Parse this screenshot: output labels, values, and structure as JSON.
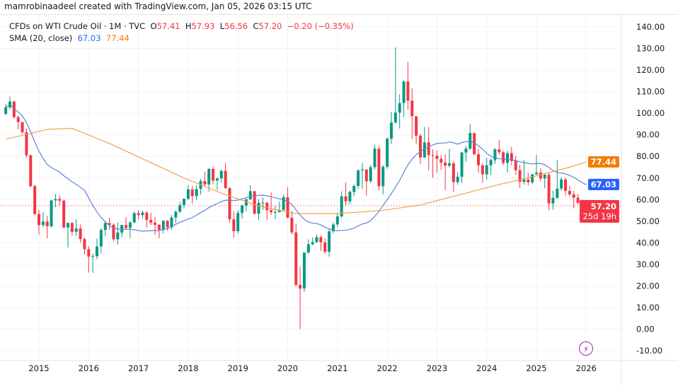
{
  "attribution": "mamrobinaadeel created with TradingView.com, Jan 05, 2026 03:15 UTC",
  "legend": {
    "symbol": "CFDs on WTI Crude Oil · 1M · TVC",
    "open_label": "O",
    "open": "57.41",
    "high_label": "H",
    "high": "57.93",
    "low_label": "L",
    "low": "56.56",
    "close_label": "C",
    "close": "57.20",
    "change": "−0.20 (−0.35%)",
    "sma_label": "SMA (20, close)",
    "sma_value": "67.03",
    "sma_smooth_value": "77.44"
  },
  "price_labels": {
    "sma_smooth": "77.44",
    "sma": "67.03",
    "last": "57.20",
    "countdown": "25d 19h"
  },
  "icons": {
    "bottom": "lightning-icon"
  },
  "colors": {
    "up": "#089981",
    "down": "#f23645",
    "sma": "#2962ff",
    "sma_line": "#5b84d9",
    "sma_smooth": "#f57c00",
    "sma_smooth_line": "#f5a04a"
  },
  "chart_data": {
    "type": "candlestick",
    "interval": "1M",
    "start_month": "2014-05",
    "ohlc": [
      [
        99.7,
        104.2,
        99.0,
        102.7
      ],
      [
        102.7,
        107.7,
        101.7,
        105.4
      ],
      [
        105.4,
        105.8,
        97.4,
        98.2
      ],
      [
        98.2,
        98.9,
        92.5,
        95.9
      ],
      [
        95.9,
        95.9,
        90.4,
        91.2
      ],
      [
        91.2,
        92.9,
        79.4,
        80.5
      ],
      [
        80.5,
        80.9,
        65.7,
        66.2
      ],
      [
        66.2,
        67.0,
        52.7,
        53.3
      ],
      [
        53.3,
        55.2,
        43.6,
        48.2
      ],
      [
        48.2,
        54.2,
        47.3,
        49.8
      ],
      [
        49.8,
        52.5,
        42.0,
        47.6
      ],
      [
        47.6,
        59.9,
        47.1,
        59.6
      ],
      [
        59.6,
        62.6,
        56.5,
        60.3
      ],
      [
        60.3,
        61.9,
        57.2,
        59.5
      ],
      [
        59.5,
        59.9,
        46.7,
        47.1
      ],
      [
        47.1,
        49.3,
        37.8,
        49.2
      ],
      [
        49.2,
        49.4,
        43.2,
        45.1
      ],
      [
        45.1,
        50.9,
        43.1,
        46.6
      ],
      [
        46.6,
        48.4,
        40.0,
        41.7
      ],
      [
        41.7,
        42.6,
        34.5,
        37.0
      ],
      [
        37.0,
        38.4,
        26.2,
        33.6
      ],
      [
        33.6,
        34.8,
        26.1,
        33.8
      ],
      [
        33.8,
        41.9,
        32.4,
        38.3
      ],
      [
        38.3,
        46.8,
        35.2,
        45.9
      ],
      [
        45.9,
        50.2,
        43.0,
        49.1
      ],
      [
        49.1,
        51.7,
        46.0,
        48.3
      ],
      [
        48.3,
        49.0,
        40.6,
        41.6
      ],
      [
        41.6,
        49.4,
        39.2,
        44.7
      ],
      [
        44.7,
        48.3,
        42.5,
        48.2
      ],
      [
        48.2,
        51.9,
        46.0,
        46.9
      ],
      [
        46.9,
        49.9,
        42.2,
        49.4
      ],
      [
        49.4,
        54.5,
        49.0,
        53.7
      ],
      [
        53.7,
        55.2,
        50.7,
        52.8
      ],
      [
        52.8,
        54.9,
        51.2,
        54.0
      ],
      [
        54.0,
        54.6,
        47.1,
        50.6
      ],
      [
        50.6,
        53.8,
        48.2,
        49.3
      ],
      [
        49.3,
        52.0,
        43.8,
        48.3
      ],
      [
        48.3,
        48.6,
        42.1,
        46.0
      ],
      [
        46.0,
        50.4,
        44.4,
        50.2
      ],
      [
        50.2,
        50.4,
        45.6,
        47.2
      ],
      [
        47.2,
        52.9,
        46.0,
        51.7
      ],
      [
        51.7,
        54.9,
        49.1,
        54.4
      ],
      [
        54.4,
        59.0,
        53.8,
        57.4
      ],
      [
        57.4,
        60.5,
        55.8,
        60.4
      ],
      [
        60.4,
        66.7,
        59.8,
        64.7
      ],
      [
        64.7,
        66.4,
        58.1,
        61.6
      ],
      [
        61.6,
        66.6,
        59.9,
        64.9
      ],
      [
        64.9,
        69.6,
        62.3,
        68.6
      ],
      [
        68.6,
        72.9,
        66.3,
        67.0
      ],
      [
        67.0,
        74.5,
        63.6,
        74.2
      ],
      [
        74.2,
        75.3,
        67.0,
        68.8
      ],
      [
        68.8,
        70.4,
        64.4,
        69.8
      ],
      [
        69.8,
        73.9,
        67.6,
        73.3
      ],
      [
        73.3,
        76.9,
        64.9,
        65.3
      ],
      [
        65.3,
        65.6,
        49.4,
        50.9
      ],
      [
        50.9,
        54.6,
        42.4,
        45.4
      ],
      [
        45.4,
        55.0,
        44.3,
        53.8
      ],
      [
        53.8,
        57.8,
        51.2,
        57.2
      ],
      [
        57.2,
        60.4,
        54.5,
        60.1
      ],
      [
        60.1,
        66.6,
        59.9,
        63.9
      ],
      [
        63.9,
        63.9,
        53.0,
        53.5
      ],
      [
        53.5,
        60.2,
        50.6,
        58.5
      ],
      [
        58.5,
        60.9,
        55.2,
        58.6
      ],
      [
        58.6,
        58.7,
        50.5,
        55.1
      ],
      [
        55.1,
        63.4,
        52.9,
        54.1
      ],
      [
        54.1,
        57.2,
        50.9,
        54.2
      ],
      [
        54.2,
        59.0,
        54.0,
        55.2
      ],
      [
        55.2,
        62.4,
        55.0,
        61.1
      ],
      [
        61.1,
        65.7,
        51.4,
        51.6
      ],
      [
        51.6,
        54.7,
        43.9,
        44.8
      ],
      [
        44.8,
        48.7,
        19.9,
        20.5
      ],
      [
        20.5,
        29.1,
        0.0,
        18.8
      ],
      [
        18.8,
        35.6,
        17.3,
        35.5
      ],
      [
        35.5,
        41.6,
        34.7,
        39.3
      ],
      [
        39.3,
        42.5,
        38.7,
        40.3
      ],
      [
        40.3,
        43.8,
        40.0,
        42.6
      ],
      [
        42.6,
        43.4,
        36.2,
        40.2
      ],
      [
        40.2,
        41.9,
        34.9,
        35.8
      ],
      [
        35.8,
        46.3,
        33.6,
        45.3
      ],
      [
        45.3,
        49.4,
        44.3,
        48.5
      ],
      [
        48.5,
        53.9,
        47.2,
        52.2
      ],
      [
        52.2,
        63.8,
        51.6,
        61.5
      ],
      [
        61.5,
        67.9,
        57.3,
        59.2
      ],
      [
        59.2,
        64.1,
        57.8,
        63.6
      ],
      [
        63.6,
        67.0,
        61.6,
        66.3
      ],
      [
        66.3,
        74.0,
        65.0,
        73.5
      ],
      [
        73.5,
        76.9,
        65.0,
        73.9
      ],
      [
        73.9,
        73.9,
        61.8,
        68.5
      ],
      [
        68.5,
        76.0,
        67.6,
        75.0
      ],
      [
        75.0,
        85.4,
        74.0,
        83.6
      ],
      [
        83.6,
        84.9,
        64.4,
        66.2
      ],
      [
        66.2,
        76.0,
        62.4,
        75.2
      ],
      [
        75.2,
        88.8,
        74.3,
        88.2
      ],
      [
        88.2,
        100.5,
        85.7,
        95.7
      ],
      [
        95.7,
        130.5,
        95.1,
        100.3
      ],
      [
        100.3,
        108.8,
        92.9,
        104.7
      ],
      [
        104.7,
        115.3,
        98.2,
        114.7
      ],
      [
        114.7,
        123.7,
        101.5,
        105.8
      ],
      [
        105.8,
        111.5,
        88.0,
        98.6
      ],
      [
        98.6,
        98.6,
        85.8,
        89.6
      ],
      [
        89.6,
        90.4,
        76.3,
        79.5
      ],
      [
        79.5,
        93.6,
        79.3,
        86.5
      ],
      [
        86.5,
        93.7,
        73.6,
        80.6
      ],
      [
        80.6,
        83.3,
        70.1,
        80.3
      ],
      [
        80.3,
        82.7,
        72.5,
        78.9
      ],
      [
        78.9,
        80.6,
        73.8,
        77.1
      ],
      [
        77.1,
        81.0,
        64.4,
        75.7
      ],
      [
        75.7,
        83.5,
        74.9,
        76.8
      ],
      [
        76.8,
        77.7,
        63.6,
        68.1
      ],
      [
        68.1,
        72.7,
        66.8,
        70.6
      ],
      [
        70.6,
        82.0,
        67.7,
        81.8
      ],
      [
        81.8,
        84.9,
        77.6,
        83.6
      ],
      [
        83.6,
        95.0,
        83.0,
        90.8
      ],
      [
        90.8,
        90.9,
        80.5,
        81.0
      ],
      [
        81.0,
        83.6,
        72.4,
        75.9
      ],
      [
        75.9,
        76.8,
        67.7,
        71.7
      ],
      [
        71.7,
        79.3,
        69.3,
        75.9
      ],
      [
        75.9,
        79.2,
        71.4,
        78.3
      ],
      [
        78.3,
        83.9,
        76.6,
        83.2
      ],
      [
        83.2,
        87.7,
        80.9,
        81.9
      ],
      [
        81.9,
        82.5,
        76.0,
        77.0
      ],
      [
        77.0,
        82.6,
        72.5,
        81.5
      ],
      [
        81.5,
        84.5,
        75.9,
        77.9
      ],
      [
        77.9,
        80.2,
        71.5,
        73.6
      ],
      [
        73.6,
        76.1,
        65.3,
        68.2
      ],
      [
        68.2,
        78.4,
        66.9,
        69.3
      ],
      [
        69.3,
        72.6,
        66.6,
        68.0
      ],
      [
        68.0,
        72.0,
        67.1,
        71.7
      ],
      [
        71.7,
        80.7,
        71.5,
        72.5
      ],
      [
        72.5,
        74.5,
        68.4,
        69.8
      ],
      [
        69.8,
        72.0,
        65.2,
        71.5
      ],
      [
        71.5,
        72.4,
        55.1,
        58.2
      ],
      [
        58.2,
        64.2,
        55.3,
        60.8
      ],
      [
        60.8,
        78.4,
        60.3,
        65.1
      ],
      [
        65.1,
        70.5,
        64.1,
        69.3
      ],
      [
        69.3,
        70.0,
        61.9,
        64.0
      ],
      [
        64.0,
        66.4,
        61.5,
        62.4
      ],
      [
        62.4,
        64.0,
        55.9,
        60.9
      ],
      [
        60.9,
        62.6,
        57.7,
        58.6
      ],
      [
        58.6,
        60.0,
        54.9,
        57.4
      ],
      [
        57.41,
        57.93,
        56.56,
        57.2
      ]
    ],
    "sma_period": 20,
    "sma_smooth_line": [
      [
        "2014-05",
        88
      ],
      [
        "2015-03",
        92.5
      ],
      [
        "2015-09",
        93
      ],
      [
        "2016-06",
        86
      ],
      [
        "2017-03",
        78
      ],
      [
        "2017-12",
        70
      ],
      [
        "2018-09",
        63
      ],
      [
        "2019-06",
        57
      ],
      [
        "2020-03",
        53.5
      ],
      [
        "2021-01",
        53.5
      ],
      [
        "2021-12",
        55
      ],
      [
        "2022-09",
        57.5
      ],
      [
        "2023-06",
        62
      ],
      [
        "2024-03",
        66.5
      ],
      [
        "2024-12",
        70.5
      ],
      [
        "2025-09",
        75
      ],
      [
        "2026-01",
        77.44
      ]
    ],
    "y_ticks": [
      "140.00",
      "130.00",
      "120.00",
      "110.00",
      "100.00",
      "90.00",
      "80.00",
      "70.00",
      "60.00",
      "50.00",
      "40.00",
      "30.00",
      "20.00",
      "10.00",
      "0.00",
      "-10.00"
    ],
    "x_ticks": [
      "2015",
      "2016",
      "2017",
      "2018",
      "2019",
      "2020",
      "2021",
      "2022",
      "2023",
      "2024",
      "2025",
      "2026"
    ],
    "ylim": [
      -10,
      140
    ],
    "grid": true
  }
}
